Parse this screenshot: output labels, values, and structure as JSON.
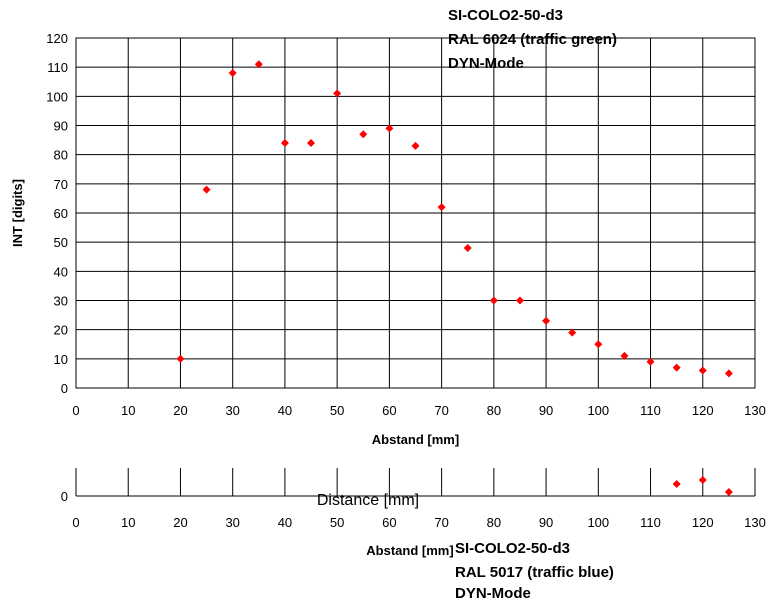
{
  "chart_data": [
    {
      "type": "scatter",
      "annotation": [
        "SI-COLO2-50-d3",
        "RAL 6024 (traffic green)",
        "DYN-Mode"
      ],
      "xlabel": "Abstand [mm]",
      "ylabel": "INT [digits]",
      "xlim": [
        0,
        130
      ],
      "ylim": [
        0,
        120
      ],
      "xticks": [
        0,
        10,
        20,
        30,
        40,
        50,
        60,
        70,
        80,
        90,
        100,
        110,
        120,
        130
      ],
      "yticks": [
        0,
        10,
        20,
        30,
        40,
        50,
        60,
        70,
        80,
        90,
        100,
        110,
        120
      ],
      "grid": true,
      "marker_color": "#ff0000",
      "series": [
        {
          "x": [
            20,
            25,
            30,
            35,
            40,
            45,
            50,
            55,
            60,
            65,
            70,
            75,
            80,
            85,
            90,
            95,
            100,
            105,
            110,
            115,
            120,
            125
          ],
          "y": [
            10,
            68,
            108,
            111,
            84,
            84,
            101,
            87,
            89,
            83,
            62,
            48,
            30,
            30,
            23,
            19,
            15,
            11,
            9,
            7,
            6,
            5
          ]
        }
      ]
    },
    {
      "type": "scatter",
      "annotation": [
        "SI-COLO2-50-d3",
        "RAL 5017 (traffic blue)",
        "DYN-Mode"
      ],
      "xlabel": "Abstand [mm]",
      "overlay_label": "Distance [mm]",
      "xlim": [
        0,
        130
      ],
      "xticks": [
        0,
        10,
        20,
        30,
        40,
        50,
        60,
        70,
        80,
        90,
        100,
        110,
        120,
        130
      ],
      "yticks": [
        0
      ],
      "grid": true,
      "marker_color": "#ff0000",
      "series": [
        {
          "x": [
            115,
            120,
            125
          ],
          "y": [
            0.6,
            0.8,
            0.2
          ]
        }
      ]
    }
  ]
}
